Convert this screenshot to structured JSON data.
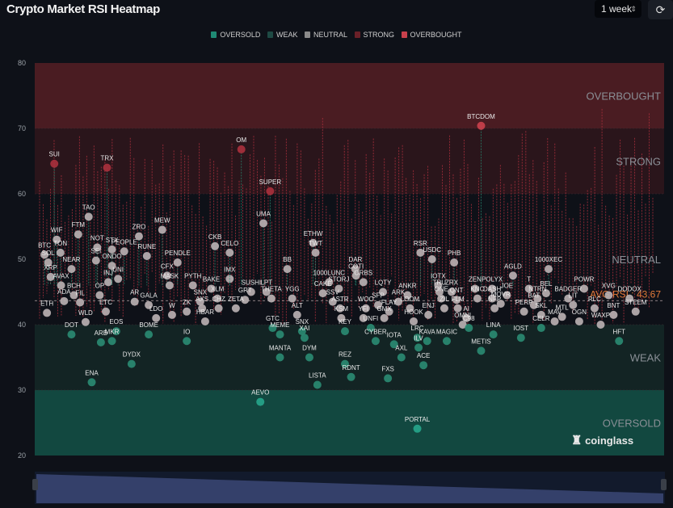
{
  "header": {
    "title": "Crypto Market RSI Heatmap",
    "period_select": "1 week",
    "refresh_icon": "refresh-icon"
  },
  "legend": [
    {
      "label": "OVERSOLD",
      "color": "#1f8a74"
    },
    {
      "label": "WEAK",
      "color": "#1e4a44"
    },
    {
      "label": "NEUTRAL",
      "color": "#8a8a8a"
    },
    {
      "label": "STRONG",
      "color": "#6a2028"
    },
    {
      "label": "OVERBOUGHT",
      "color": "#c8404c"
    }
  ],
  "watermark": "coinglass",
  "chart_data": {
    "type": "scatter",
    "title": "Crypto Market RSI Heatmap",
    "ylim": [
      20,
      80
    ],
    "yticks": [
      "80",
      "70",
      "60",
      "50",
      "40",
      "30",
      "20"
    ],
    "zones": [
      {
        "label": "OVERBOUGHT",
        "from": 70,
        "to": 80,
        "color": "#4a1c22"
      },
      {
        "label": "STRONG",
        "from": 60,
        "to": 70,
        "color": "#2a151b"
      },
      {
        "label": "NEUTRAL",
        "from": 40,
        "to": 60,
        "color": "#0e1118"
      },
      {
        "label": "WEAK",
        "from": 30,
        "to": 40,
        "color": "#132424"
      },
      {
        "label": "OVERSOLD",
        "from": 20,
        "to": 30,
        "color": "#124840"
      }
    ],
    "avg_rsi": 43.67,
    "avg_label": "AVG RSI : 43.67",
    "points": [
      {
        "name": "ETH",
        "rsi": 41.8,
        "col": 0.012
      },
      {
        "name": "BTC",
        "rsi": 50.7,
        "col": 0.008
      },
      {
        "name": "SOL",
        "rsi": 49.5,
        "col": 0.014
      },
      {
        "name": "XRP",
        "rsi": 47.3,
        "col": 0.018
      },
      {
        "name": "SUI",
        "rsi": 64.6,
        "col": 0.024
      },
      {
        "name": "WIF",
        "rsi": 53.0,
        "col": 0.028
      },
      {
        "name": "TON",
        "rsi": 51.0,
        "col": 0.034
      },
      {
        "name": "AVAX",
        "rsi": 46.0,
        "col": 0.035
      },
      {
        "name": "ADA",
        "rsi": 43.6,
        "col": 0.04
      },
      {
        "name": "NEAR",
        "rsi": 48.5,
        "col": 0.052
      },
      {
        "name": "BCH",
        "rsi": 44.5,
        "col": 0.056
      },
      {
        "name": "DOT",
        "rsi": 38.5,
        "col": 0.052
      },
      {
        "name": "FTM",
        "rsi": 53.8,
        "col": 0.063
      },
      {
        "name": "FIL",
        "rsi": 43.4,
        "col": 0.066
      },
      {
        "name": "WLD",
        "rsi": 40.4,
        "col": 0.075
      },
      {
        "name": "TAO",
        "rsi": 56.5,
        "col": 0.08
      },
      {
        "name": "ENA",
        "rsi": 31.2,
        "col": 0.085
      },
      {
        "name": "NOT",
        "rsi": 51.8,
        "col": 0.094
      },
      {
        "name": "TRX",
        "rsi": 64.0,
        "col": 0.11
      },
      {
        "name": "SEI",
        "rsi": 49.8,
        "col": 0.092
      },
      {
        "name": "OP",
        "rsi": 44.5,
        "col": 0.098
      },
      {
        "name": "ETC",
        "rsi": 42.0,
        "col": 0.108
      },
      {
        "name": "ARB",
        "rsi": 37.3,
        "col": 0.1
      },
      {
        "name": "INJ",
        "rsi": 46.5,
        "col": 0.112
      },
      {
        "name": "STX",
        "rsi": 51.5,
        "col": 0.118
      },
      {
        "name": "ONDO",
        "rsi": 49.0,
        "col": 0.118
      },
      {
        "name": "MKR",
        "rsi": 37.5,
        "col": 0.118
      },
      {
        "name": "EOS",
        "rsi": 39.0,
        "col": 0.125
      },
      {
        "name": "UNI",
        "rsi": 47.0,
        "col": 0.128
      },
      {
        "name": "PEOPLE",
        "rsi": 51.2,
        "col": 0.138
      },
      {
        "name": "DYDX",
        "rsi": 34.0,
        "col": 0.15
      },
      {
        "name": "AR",
        "rsi": 43.5,
        "col": 0.155
      },
      {
        "name": "ZRO",
        "rsi": 53.5,
        "col": 0.162
      },
      {
        "name": "RUNE",
        "rsi": 50.5,
        "col": 0.175
      },
      {
        "name": "GALA",
        "rsi": 43.0,
        "col": 0.178
      },
      {
        "name": "BOME",
        "rsi": 38.5,
        "col": 0.178
      },
      {
        "name": "LDO",
        "rsi": 41.0,
        "col": 0.19
      },
      {
        "name": "MEW",
        "rsi": 54.5,
        "col": 0.2
      },
      {
        "name": "CFX",
        "rsi": 47.5,
        "col": 0.208
      },
      {
        "name": "MASK",
        "rsi": 46.0,
        "col": 0.212
      },
      {
        "name": "W",
        "rsi": 41.5,
        "col": 0.216
      },
      {
        "name": "PENDLE",
        "rsi": 49.5,
        "col": 0.225
      },
      {
        "name": "ZK",
        "rsi": 42.0,
        "col": 0.24
      },
      {
        "name": "IO",
        "rsi": 37.5,
        "col": 0.24
      },
      {
        "name": "PYTH",
        "rsi": 46.0,
        "col": 0.25
      },
      {
        "name": "SNX",
        "rsi": 43.5,
        "col": 0.262
      },
      {
        "name": "AXS",
        "rsi": 42.5,
        "col": 0.265
      },
      {
        "name": "HBAR",
        "rsi": 40.5,
        "col": 0.27
      },
      {
        "name": "BAKE",
        "rsi": 45.5,
        "col": 0.28
      },
      {
        "name": "XLM",
        "rsi": 44.0,
        "col": 0.29
      },
      {
        "name": "CKB",
        "rsi": 52.0,
        "col": 0.286
      },
      {
        "name": "CHZ",
        "rsi": 42.5,
        "col": 0.292
      },
      {
        "name": "IMX",
        "rsi": 47.0,
        "col": 0.31
      },
      {
        "name": "CELO",
        "rsi": 51.0,
        "col": 0.31
      },
      {
        "name": "ZETA",
        "rsi": 42.5,
        "col": 0.32
      },
      {
        "name": "GRT",
        "rsi": 43.8,
        "col": 0.335
      },
      {
        "name": "SUSHI",
        "rsi": 45.0,
        "col": 0.345
      },
      {
        "name": "OM",
        "rsi": 66.8,
        "col": 0.329
      },
      {
        "name": "AEVO",
        "rsi": 28.2,
        "col": 0.36
      },
      {
        "name": "UMA",
        "rsi": 55.5,
        "col": 0.365
      },
      {
        "name": "LPT",
        "rsi": 45.0,
        "col": 0.37
      },
      {
        "name": "THETA",
        "rsi": 44.0,
        "col": 0.378
      },
      {
        "name": "GTC",
        "rsi": 39.5,
        "col": 0.38
      },
      {
        "name": "SUPER",
        "rsi": 60.4,
        "col": 0.376
      },
      {
        "name": "MEME",
        "rsi": 38.5,
        "col": 0.392
      },
      {
        "name": "MANTA",
        "rsi": 35.0,
        "col": 0.392
      },
      {
        "name": "BB",
        "rsi": 48.5,
        "col": 0.404
      },
      {
        "name": "YGG",
        "rsi": 44.0,
        "col": 0.412
      },
      {
        "name": "ALT",
        "rsi": 41.5,
        "col": 0.42
      },
      {
        "name": "SNX",
        "rsi": 39.0,
        "col": 0.428
      },
      {
        "name": "XAI",
        "rsi": 38.0,
        "col": 0.432
      },
      {
        "name": "DYM",
        "rsi": 35.0,
        "col": 0.44
      },
      {
        "name": "ETHW",
        "rsi": 52.5,
        "col": 0.446
      },
      {
        "name": "TWT",
        "rsi": 51.0,
        "col": 0.45
      },
      {
        "name": "LISTA",
        "rsi": 30.8,
        "col": 0.453
      },
      {
        "name": "CAKE",
        "rsi": 44.8,
        "col": 0.462
      },
      {
        "name": "1000LUNC",
        "rsi": 46.5,
        "col": 0.472
      },
      {
        "name": "SSV",
        "rsi": 43.5,
        "col": 0.478
      },
      {
        "name": "STORJ",
        "rsi": 45.5,
        "col": 0.488
      },
      {
        "name": "ASTR",
        "rsi": 42.5,
        "col": 0.49
      },
      {
        "name": "KSM",
        "rsi": 41.0,
        "col": 0.492
      },
      {
        "name": "KEY",
        "rsi": 39.0,
        "col": 0.498
      },
      {
        "name": "REZ",
        "rsi": 34.0,
        "col": 0.498
      },
      {
        "name": "RDNT",
        "rsi": 32.0,
        "col": 0.508
      },
      {
        "name": "DAR",
        "rsi": 48.5,
        "col": 0.515
      },
      {
        "name": "COTI",
        "rsi": 47.5,
        "col": 0.516
      },
      {
        "name": "ORBS",
        "rsi": 46.5,
        "col": 0.528
      },
      {
        "name": "WOO",
        "rsi": 42.5,
        "col": 0.532
      },
      {
        "name": "YFI",
        "rsi": 41.0,
        "col": 0.528
      },
      {
        "name": "UNFI",
        "rsi": 39.5,
        "col": 0.54
      },
      {
        "name": "CYBER",
        "rsi": 37.5,
        "col": 0.548
      },
      {
        "name": "SFP",
        "rsi": 43.0,
        "col": 0.552
      },
      {
        "name": "LQTY",
        "rsi": 45.0,
        "col": 0.56
      },
      {
        "name": "GMX",
        "rsi": 41.0,
        "col": 0.562
      },
      {
        "name": "FLAY",
        "rsi": 42.0,
        "col": 0.57
      },
      {
        "name": "FXS",
        "rsi": 31.8,
        "col": 0.568
      },
      {
        "name": "IOTA",
        "rsi": 37.0,
        "col": 0.578
      },
      {
        "name": "ARK",
        "rsi": 43.5,
        "col": 0.585
      },
      {
        "name": "AXL",
        "rsi": 35.0,
        "col": 0.59
      },
      {
        "name": "ANKR",
        "rsi": 44.5,
        "col": 0.6
      },
      {
        "name": "LOOM",
        "rsi": 42.5,
        "col": 0.604
      },
      {
        "name": "HOOK",
        "rsi": 40.5,
        "col": 0.61
      },
      {
        "name": "LRC",
        "rsi": 38.0,
        "col": 0.616
      },
      {
        "name": "ILV",
        "rsi": 36.5,
        "col": 0.618
      },
      {
        "name": "ACE",
        "rsi": 33.8,
        "col": 0.626
      },
      {
        "name": "PORTAL",
        "rsi": 24.1,
        "col": 0.616
      },
      {
        "name": "RSR",
        "rsi": 51.0,
        "col": 0.621
      },
      {
        "name": "KAVA",
        "rsi": 37.5,
        "col": 0.632
      },
      {
        "name": "ENJ",
        "rsi": 41.5,
        "col": 0.634
      },
      {
        "name": "USDC",
        "rsi": 50.0,
        "col": 0.64
      },
      {
        "name": "IOTX",
        "rsi": 46.0,
        "col": 0.65
      },
      {
        "name": "TRU",
        "rsi": 45.0,
        "col": 0.652
      },
      {
        "name": "ONE",
        "rsi": 44.0,
        "col": 0.655
      },
      {
        "name": "ZIL",
        "rsi": 42.5,
        "col": 0.66
      },
      {
        "name": "MAGIC",
        "rsi": 37.5,
        "col": 0.664
      },
      {
        "name": "PHB",
        "rsi": 49.5,
        "col": 0.676
      },
      {
        "name": "ZRX",
        "rsi": 45.0,
        "col": 0.672
      },
      {
        "name": "QNT",
        "rsi": 43.8,
        "col": 0.68
      },
      {
        "name": "FLM",
        "rsi": 42.5,
        "col": 0.682
      },
      {
        "name": "OMNI",
        "rsi": 40.0,
        "col": 0.69
      },
      {
        "name": "AI",
        "rsi": 41.0,
        "col": 0.696
      },
      {
        "name": "C98",
        "rsi": 39.5,
        "col": 0.7
      },
      {
        "name": "ZEN",
        "rsi": 45.5,
        "col": 0.71
      },
      {
        "name": "KNC",
        "rsi": 44.0,
        "col": 0.714
      },
      {
        "name": "METIS",
        "rsi": 36.0,
        "col": 0.72
      },
      {
        "name": "BTCDOM",
        "rsi": 70.4,
        "col": 0.72
      },
      {
        "name": "POLYX",
        "rsi": 45.5,
        "col": 0.738
      },
      {
        "name": "DASH",
        "rsi": 44.0,
        "col": 0.738
      },
      {
        "name": "LINA",
        "rsi": 38.5,
        "col": 0.74
      },
      {
        "name": "NFP",
        "rsi": 42.5,
        "col": 0.742
      },
      {
        "name": "MOVR",
        "rsi": 43.2,
        "col": 0.752
      },
      {
        "name": "JOE",
        "rsi": 44.5,
        "col": 0.762
      },
      {
        "name": "AGLD",
        "rsi": 47.5,
        "col": 0.772
      },
      {
        "name": "IOST",
        "rsi": 38.0,
        "col": 0.785
      },
      {
        "name": "PERP",
        "rsi": 42.0,
        "col": 0.79
      },
      {
        "name": "T",
        "rsi": 45.5,
        "col": 0.798
      },
      {
        "name": "BAT",
        "rsi": 43.0,
        "col": 0.806
      },
      {
        "name": "CELR",
        "rsi": 39.5,
        "col": 0.818
      },
      {
        "name": "NTRN",
        "rsi": 44.0,
        "col": 0.812
      },
      {
        "name": "SKL",
        "rsi": 41.5,
        "col": 0.818
      },
      {
        "name": "BEL",
        "rsi": 44.8,
        "col": 0.826
      },
      {
        "name": "1000XEC",
        "rsi": 48.5,
        "col": 0.83
      },
      {
        "name": "MAV",
        "rsi": 40.5,
        "col": 0.84
      },
      {
        "name": "MTL",
        "rsi": 41.2,
        "col": 0.852
      },
      {
        "name": "BADGER",
        "rsi": 44.0,
        "col": 0.862
      },
      {
        "name": "LIT",
        "rsi": 43.0,
        "col": 0.87
      },
      {
        "name": "OGN",
        "rsi": 40.5,
        "col": 0.88
      },
      {
        "name": "POWR",
        "rsi": 45.5,
        "col": 0.888
      },
      {
        "name": "RLC",
        "rsi": 42.5,
        "col": 0.905
      },
      {
        "name": "WAXP",
        "rsi": 40.0,
        "col": 0.915
      },
      {
        "name": "XVG",
        "rsi": 44.5,
        "col": 0.928
      },
      {
        "name": "BNT",
        "rsi": 41.5,
        "col": 0.936
      },
      {
        "name": "HFT",
        "rsi": 37.5,
        "col": 0.945
      },
      {
        "name": "DODOX",
        "rsi": 44.0,
        "col": 0.962
      },
      {
        "name": "STEEM",
        "rsi": 42.0,
        "col": 0.972
      }
    ]
  }
}
